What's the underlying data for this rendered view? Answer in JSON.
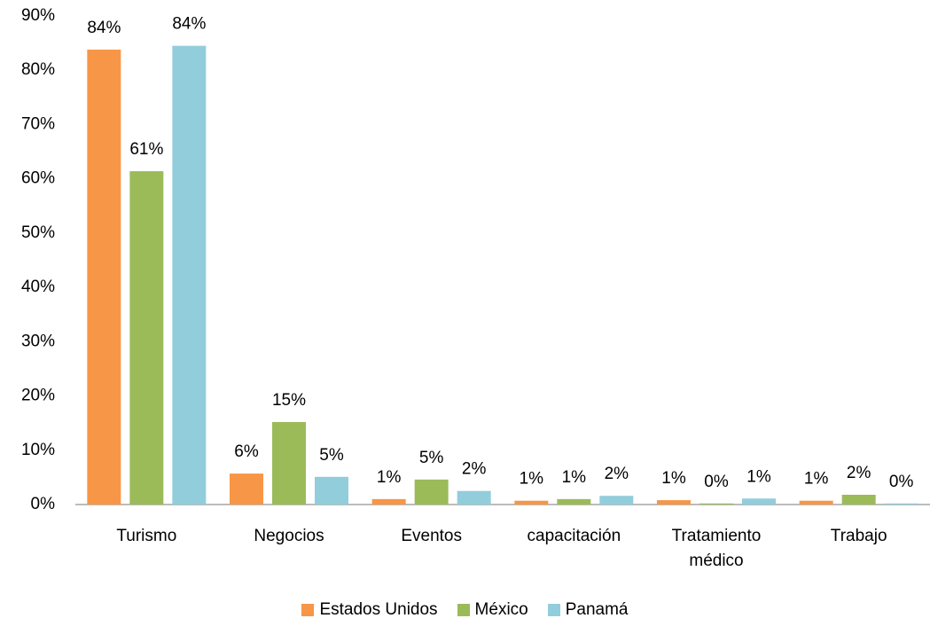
{
  "chart_data": {
    "type": "bar",
    "categories": [
      "Turismo",
      "Negocios",
      "Eventos",
      "capacitación",
      "Tratamiento médico",
      "Trabajo"
    ],
    "series": [
      {
        "name": "Estados Unidos",
        "color": "#f79646",
        "values": [
          83.8,
          5.7,
          1.0,
          0.7,
          0.8,
          0.7
        ],
        "value_labels": [
          "84%",
          "6%",
          "1%",
          "1%",
          "1%",
          "1%"
        ]
      },
      {
        "name": "México",
        "color": "#9bbb59",
        "values": [
          61.4,
          15.2,
          4.6,
          1.0,
          0.2,
          1.8
        ],
        "value_labels": [
          "61%",
          "15%",
          "5%",
          "1%",
          "0%",
          "2%"
        ]
      },
      {
        "name": "Panamá",
        "color": "#92cddc",
        "values": [
          84.5,
          5.1,
          2.5,
          1.6,
          1.1,
          0.2
        ],
        "value_labels": [
          "84%",
          "5%",
          "2%",
          "2%",
          "1%",
          "0%"
        ]
      }
    ],
    "ylim": [
      0,
      90
    ],
    "yticks": [
      {
        "value": 0,
        "label": "0%"
      },
      {
        "value": 10,
        "label": "10%"
      },
      {
        "value": 20,
        "label": "20%"
      },
      {
        "value": 30,
        "label": "30%"
      },
      {
        "value": 40,
        "label": "40%"
      },
      {
        "value": 50,
        "label": "50%"
      },
      {
        "value": 60,
        "label": "60%"
      },
      {
        "value": 70,
        "label": "70%"
      },
      {
        "value": 80,
        "label": "80%"
      },
      {
        "value": 90,
        "label": "90%"
      }
    ],
    "grid": false,
    "legend": "bottom"
  }
}
